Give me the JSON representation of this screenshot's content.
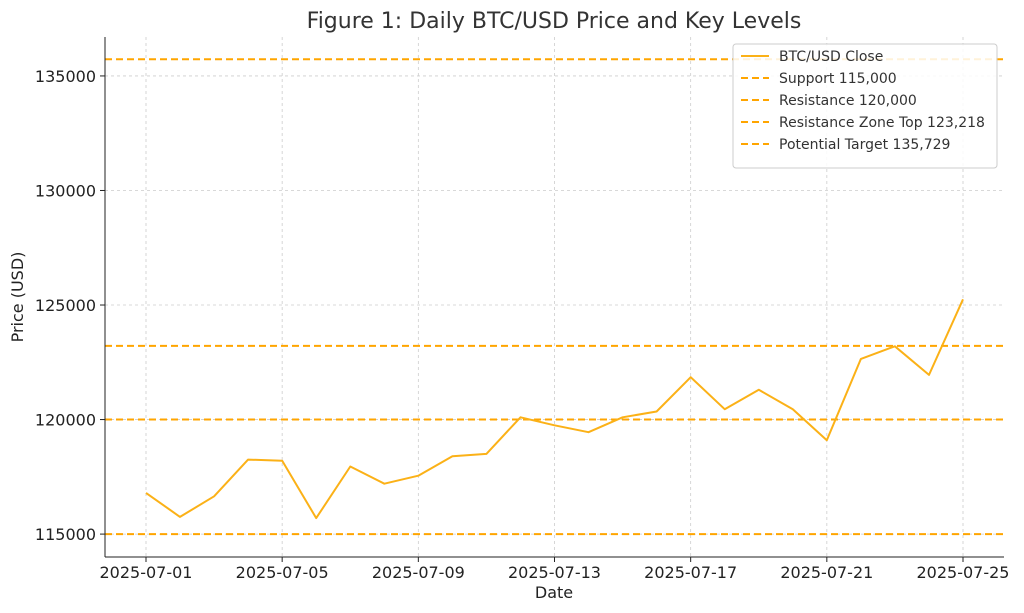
{
  "chart_data": {
    "type": "line",
    "title": "Figure 1: Daily BTC/USD Price and Key Levels",
    "xlabel": "Date",
    "ylabel": "Price (USD)",
    "x_ticks": [
      "2025-07-01",
      "2025-07-05",
      "2025-07-09",
      "2025-07-13",
      "2025-07-17",
      "2025-07-21",
      "2025-07-25"
    ],
    "y_ticks": [
      115000,
      120000,
      125000,
      130000,
      135000
    ],
    "ylim": [
      114000,
      136700
    ],
    "grid": true,
    "legend_position": "top-right",
    "series": [
      {
        "name": "BTC/USD Close",
        "color": "#FBB117",
        "style": "solid",
        "x": [
          "2025-07-01",
          "2025-07-02",
          "2025-07-03",
          "2025-07-04",
          "2025-07-05",
          "2025-07-06",
          "2025-07-07",
          "2025-07-08",
          "2025-07-09",
          "2025-07-10",
          "2025-07-11",
          "2025-07-12",
          "2025-07-13",
          "2025-07-14",
          "2025-07-15",
          "2025-07-16",
          "2025-07-17",
          "2025-07-18",
          "2025-07-19",
          "2025-07-20",
          "2025-07-21",
          "2025-07-22",
          "2025-07-23",
          "2025-07-24",
          "2025-07-25"
        ],
        "values": [
          116800,
          115750,
          116650,
          118250,
          118200,
          115700,
          117950,
          117200,
          117550,
          118400,
          118500,
          120100,
          119750,
          119450,
          120100,
          120350,
          121850,
          120450,
          121300,
          120450,
          119100,
          122650,
          123200,
          121950,
          125250
        ]
      }
    ],
    "reference_lines": [
      {
        "name": "Support 115,000",
        "value": 115000,
        "color": "#FFA500",
        "style": "dashed"
      },
      {
        "name": "Resistance 120,000",
        "value": 120000,
        "color": "#FFA500",
        "style": "dashed"
      },
      {
        "name": "Resistance Zone Top 123,218",
        "value": 123218,
        "color": "#FFA500",
        "style": "dashed"
      },
      {
        "name": "Potential Target 135,729",
        "value": 135729,
        "color": "#FFA500",
        "style": "dashed"
      }
    ]
  }
}
